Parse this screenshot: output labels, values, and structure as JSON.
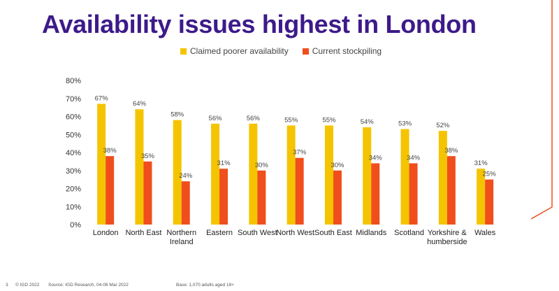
{
  "page": {
    "title": "Availability issues highest in London",
    "footer": {
      "page_number": "3",
      "copyright": "© IGD 2022",
      "source": "Source: IGD Research, 04-06 Mar 2022",
      "base": "Base: 1,070 adults aged 18+"
    }
  },
  "colors": {
    "title": "#3d1a8a",
    "claimed": "#f5c400",
    "stockpiling": "#f04e1c",
    "corner_accent": "#f04e1c"
  },
  "chart_data": {
    "type": "bar",
    "title": "",
    "xlabel": "",
    "ylabel": "",
    "ylim": [
      0,
      80
    ],
    "yticks": [
      "0%",
      "10%",
      "20%",
      "30%",
      "40%",
      "50%",
      "60%",
      "70%",
      "80%"
    ],
    "grid": false,
    "legend_position": "top",
    "categories": [
      [
        "London"
      ],
      [
        "North East"
      ],
      [
        "Northern",
        "Ireland"
      ],
      [
        "Eastern"
      ],
      [
        "South West"
      ],
      [
        "North West"
      ],
      [
        "South East"
      ],
      [
        "Midlands"
      ],
      [
        "Scotland"
      ],
      [
        "Yorkshire &",
        "humberside"
      ],
      [
        "Wales"
      ]
    ],
    "series": [
      {
        "name": "Claimed poorer availability",
        "values": [
          67,
          64,
          58,
          56,
          56,
          55,
          55,
          54,
          53,
          52,
          31
        ],
        "labels": [
          "67%",
          "64%",
          "58%",
          "56%",
          "56%",
          "55%",
          "55%",
          "54%",
          "53%",
          "52%",
          "31%"
        ]
      },
      {
        "name": "Current stockpiling",
        "values": [
          38,
          35,
          24,
          31,
          30,
          37,
          30,
          34,
          34,
          38,
          25
        ],
        "labels": [
          "38%",
          "35%",
          "24%",
          "31%",
          "30%",
          "37%",
          "30%",
          "34%",
          "34%",
          "38%",
          "25%"
        ]
      }
    ]
  }
}
